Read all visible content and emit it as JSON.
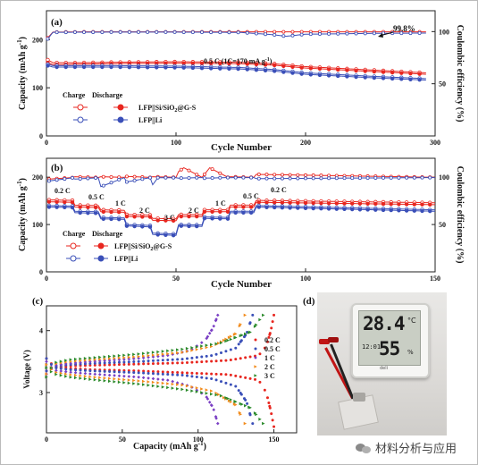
{
  "colors": {
    "red": "#e8261f",
    "blue": "#3a4fb8",
    "orange": "#f28b1b",
    "purple": "#7a3fc4",
    "green": "#2a8a2a"
  },
  "panel_a": {
    "label": "(a)",
    "condition": "0.5 C (1C=170 mA g",
    "condition_sup": "-1",
    "condition_close": ")",
    "efficiency_callout": "99.8%",
    "legend_charge": "Charge",
    "legend_discharge": "Discharge",
    "legend_items": [
      "LFP||Si/SiO",
      "LFP||Li"
    ],
    "legend_item1_sub": "2",
    "legend_item1_tail": "@G-S"
  },
  "panel_b": {
    "label": "(b)",
    "rate_labels": [
      "0.2 C",
      "0.5 C",
      "1 C",
      "2 C",
      "3 C",
      "2 C",
      "1 C",
      "0.5 C",
      "0.2 C"
    ],
    "legend_charge": "Charge",
    "legend_discharge": "Discharge",
    "legend_items": [
      "LFP||Si/SiO",
      "LFP||Li"
    ],
    "legend_item1_sub": "2",
    "legend_item1_tail": "@G-S"
  },
  "panel_c": {
    "label": "(c)"
  },
  "panel_d": {
    "label": "(d)",
    "temperature": "28.4",
    "temperature_unit": "°C",
    "humidity": "55",
    "humidity_unit": "%",
    "clock": "12:01",
    "brand": "deli"
  },
  "watermark": "材料分析与应用",
  "chart_data": [
    {
      "type": "line",
      "panel": "a",
      "xlabel": "Cycle Number",
      "ylabel": "Capacity (mAh g",
      "ylabel_sup": "-1",
      "ylabel_close": ")",
      "y2label": "Coulombic efficiency (%)",
      "xlim": [
        0,
        300
      ],
      "ylim": [
        0,
        260
      ],
      "y2lim": [
        0,
        120
      ],
      "xticks": [
        0,
        100,
        200,
        300
      ],
      "yticks": [
        0,
        100,
        200
      ],
      "y2ticks": [
        50,
        100
      ],
      "series": [
        {
          "name": "LFP||Si/SiO2@G-S",
          "kind": "charge",
          "axis": "left",
          "x": [
            1,
            5,
            25,
            50,
            100,
            150,
            175,
            200,
            250,
            293
          ],
          "y": [
            158,
            152,
            152,
            153,
            154,
            153,
            150,
            144,
            137,
            131
          ]
        },
        {
          "name": "LFP||Si/SiO2@G-S",
          "kind": "discharge",
          "axis": "left",
          "x": [
            1,
            5,
            25,
            50,
            100,
            150,
            175,
            200,
            250,
            293
          ],
          "y": [
            152,
            148,
            149,
            150,
            151,
            150,
            147,
            141,
            134,
            128
          ]
        },
        {
          "name": "LFP||Li",
          "kind": "charge",
          "axis": "left",
          "x": [
            1,
            5,
            25,
            50,
            100,
            150,
            175,
            200,
            250,
            293
          ],
          "y": [
            149,
            146,
            146,
            146,
            145,
            142,
            138,
            131,
            124,
            119
          ]
        },
        {
          "name": "LFP||Li",
          "kind": "discharge",
          "axis": "left",
          "x": [
            1,
            5,
            25,
            50,
            100,
            150,
            175,
            200,
            250,
            293
          ],
          "y": [
            146,
            143,
            143,
            143,
            142,
            139,
            135,
            128,
            121,
            116
          ]
        },
        {
          "name": "LFP||Si/SiO2@G-S",
          "kind": "efficiency",
          "axis": "right",
          "x": [
            1,
            5,
            25,
            50,
            100,
            150,
            175,
            200,
            250,
            293
          ],
          "y": [
            94,
            99.5,
            99.7,
            99.8,
            99.8,
            99.8,
            99.8,
            99.8,
            99.8,
            99.8
          ]
        },
        {
          "name": "LFP||Li",
          "kind": "efficiency",
          "axis": "right",
          "x": [
            1,
            5,
            25,
            50,
            100,
            150,
            175,
            185,
            200,
            250,
            293
          ],
          "y": [
            93,
            99.3,
            99.4,
            99.5,
            99.5,
            99.2,
            97,
            95.5,
            97.5,
            98.3,
            98.6
          ]
        }
      ]
    },
    {
      "type": "line",
      "panel": "b",
      "xlabel": "Cycle Number",
      "ylabel": "Capacity (mAh g",
      "ylabel_sup": "-1",
      "ylabel_close": ")",
      "y2label": "Coulombic efficiency (%)",
      "xlim": [
        0,
        150
      ],
      "ylim": [
        0,
        240
      ],
      "y2lim": [
        0,
        120
      ],
      "xticks": [
        0,
        50,
        100,
        150
      ],
      "yticks": [
        0,
        100,
        200
      ],
      "y2ticks": [
        50,
        100
      ],
      "series": [
        {
          "name": "LFP||Si/SiO2@G-S",
          "kind": "charge",
          "axis": "left",
          "x": [
            1,
            10,
            11,
            20,
            21,
            30,
            31,
            40,
            41,
            50,
            51,
            60,
            61,
            70,
            71,
            80,
            81,
            150
          ],
          "y": [
            152,
            151,
            141,
            140,
            131,
            130,
            121,
            120,
            113,
            112,
            121,
            121,
            131,
            131,
            141,
            141,
            151,
            146
          ]
        },
        {
          "name": "LFP||Si/SiO2@G-S",
          "kind": "discharge",
          "axis": "left",
          "x": [
            1,
            10,
            11,
            20,
            21,
            30,
            31,
            40,
            41,
            50,
            51,
            60,
            61,
            70,
            71,
            80,
            81,
            150
          ],
          "y": [
            148,
            147,
            137,
            136,
            127,
            126,
            117,
            116,
            109,
            108,
            117,
            117,
            127,
            127,
            137,
            137,
            147,
            142
          ]
        },
        {
          "name": "LFP||Li",
          "kind": "charge",
          "axis": "left",
          "x": [
            1,
            10,
            11,
            20,
            21,
            30,
            31,
            40,
            41,
            50,
            51,
            60,
            61,
            70,
            71,
            80,
            81,
            150
          ],
          "y": [
            140,
            139,
            128,
            127,
            115,
            114,
            100,
            98,
            82,
            80,
            100,
            99,
            116,
            115,
            128,
            128,
            140,
            131
          ]
        },
        {
          "name": "LFP||Li",
          "kind": "discharge",
          "axis": "left",
          "x": [
            1,
            10,
            11,
            20,
            21,
            30,
            31,
            40,
            41,
            50,
            51,
            60,
            61,
            70,
            71,
            80,
            81,
            150
          ],
          "y": [
            137,
            136,
            125,
            124,
            112,
            111,
            97,
            95,
            79,
            77,
            97,
            96,
            113,
            112,
            125,
            125,
            137,
            128
          ]
        },
        {
          "name": "LFP||Si/SiO2@G-S",
          "kind": "efficiency",
          "axis": "right",
          "x": [
            1,
            10,
            11,
            20,
            21,
            30,
            31,
            40,
            41,
            50,
            51,
            53,
            60,
            61,
            63,
            70,
            71,
            80,
            81,
            150
          ],
          "y": [
            98,
            99.6,
            100.5,
            99.7,
            100.5,
            99.8,
            100.8,
            99.8,
            100.5,
            99.9,
            106,
            110,
            99.9,
            103,
            110,
            99.9,
            100.5,
            99.9,
            103,
            99.9
          ]
        },
        {
          "name": "LFP||Li",
          "kind": "efficiency",
          "axis": "right",
          "x": [
            1,
            10,
            11,
            20,
            21,
            30,
            31,
            40,
            41,
            43,
            50,
            51,
            60,
            61,
            70,
            71,
            80,
            81,
            150
          ],
          "y": [
            96,
            99.3,
            98,
            99.4,
            90,
            99.5,
            95,
            99.5,
            92,
            99.5,
            99.5,
            99,
            99.6,
            99,
            99.6,
            99.5,
            99.6,
            98.5,
            99.6
          ]
        }
      ]
    },
    {
      "type": "scatter",
      "panel": "c",
      "xlabel": "Capacity (mAh g",
      "xlabel_sup": "-1",
      "xlabel_close": ")",
      "ylabel": "Voltage (V)",
      "xlim": [
        0,
        165
      ],
      "ylim": [
        2.35,
        4.4
      ],
      "xticks": [
        0,
        50,
        100,
        150
      ],
      "yticks": [
        3,
        4
      ],
      "series": [
        {
          "name": "0.2 C",
          "color": "#e8261f",
          "charge": {
            "x": [
              0,
              5,
              15,
              30,
              60,
              90,
              120,
              140,
              145,
              148,
              150
            ],
            "y": [
              3.35,
              3.4,
              3.43,
              3.44,
              3.46,
              3.48,
              3.52,
              3.6,
              3.75,
              4.0,
              4.25
            ]
          },
          "discharge": {
            "x": [
              0,
              5,
              15,
              30,
              60,
              90,
              120,
              140,
              145,
              148,
              150
            ],
            "y": [
              3.55,
              3.42,
              3.39,
              3.37,
              3.35,
              3.32,
              3.29,
              3.2,
              3.0,
              2.7,
              2.45
            ]
          }
        },
        {
          "name": "0.5 C",
          "color": "#3a4fb8",
          "charge": {
            "x": [
              0,
              5,
              15,
              30,
              60,
              90,
              110,
              125,
              132,
              136
            ],
            "y": [
              3.35,
              3.42,
              3.45,
              3.47,
              3.5,
              3.54,
              3.6,
              3.72,
              3.95,
              4.25
            ]
          },
          "discharge": {
            "x": [
              0,
              5,
              15,
              30,
              60,
              90,
              110,
              125,
              132,
              136
            ],
            "y": [
              3.55,
              3.4,
              3.37,
              3.35,
              3.32,
              3.28,
              3.22,
              3.1,
              2.85,
              2.5
            ]
          }
        },
        {
          "name": "1 C",
          "color": "#7a3fc4",
          "charge": {
            "x": [
              0,
              5,
              15,
              30,
              60,
              80,
              95,
              105,
              110,
              113
            ],
            "y": [
              3.3,
              3.44,
              3.47,
              3.5,
              3.55,
              3.6,
              3.68,
              3.85,
              4.05,
              4.25
            ]
          },
          "discharge": {
            "x": [
              0,
              5,
              15,
              30,
              60,
              80,
              95,
              105,
              110,
              113
            ],
            "y": [
              3.5,
              3.36,
              3.33,
              3.3,
              3.25,
              3.2,
              3.1,
              2.95,
              2.75,
              2.5
            ]
          }
        },
        {
          "name": "2 C",
          "color": "#f28b1b",
          "charge": {
            "x": [
              0,
              5,
              15,
              30,
              60,
              90,
              110,
              125,
              131
            ],
            "y": [
              3.3,
              3.46,
              3.5,
              3.53,
              3.58,
              3.65,
              3.75,
              3.95,
              4.25
            ]
          },
          "discharge": {
            "x": [
              0,
              5,
              15,
              30,
              60,
              90,
              110,
              125,
              131
            ],
            "y": [
              3.45,
              3.33,
              3.29,
              3.25,
              3.19,
              3.12,
              3.02,
              2.8,
              2.5
            ]
          }
        },
        {
          "name": "3 C",
          "color": "#2a8a2a",
          "charge": {
            "x": [
              0,
              5,
              15,
              30,
              60,
              90,
              115,
              135,
              143
            ],
            "y": [
              3.25,
              3.48,
              3.53,
              3.56,
              3.62,
              3.7,
              3.8,
              3.98,
              4.25
            ]
          },
          "discharge": {
            "x": [
              0,
              5,
              15,
              30,
              60,
              90,
              115,
              135,
              143
            ],
            "y": [
              3.4,
              3.3,
              3.25,
              3.21,
              3.14,
              3.05,
              2.95,
              2.75,
              2.5
            ]
          }
        }
      ]
    }
  ]
}
